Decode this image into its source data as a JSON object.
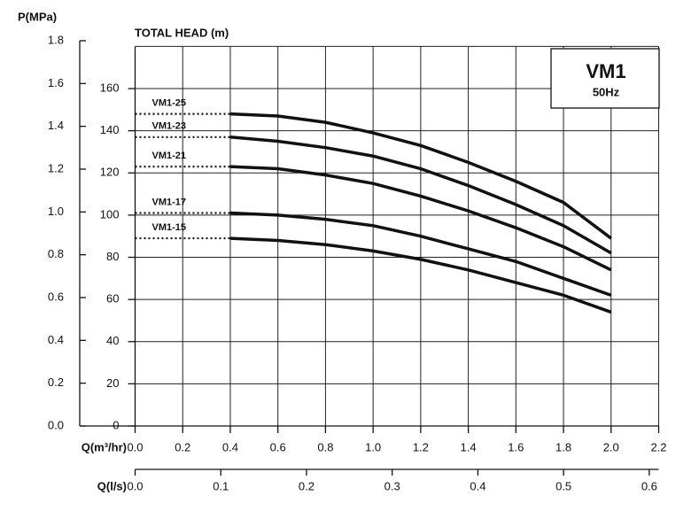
{
  "chart_data": {
    "type": "line",
    "title": "TOTAL HEAD (m)",
    "box_title": "VM1",
    "box_subtitle": "50Hz",
    "xlabel": "Q(m³/hr)",
    "x2label": "Q(l/s)",
    "y2label": "P(MPa)",
    "x": [
      0,
      0.4,
      0.6,
      0.8,
      1.0,
      1.2,
      1.4,
      1.6,
      1.8,
      2.0
    ],
    "series": [
      {
        "name": "VM1-25",
        "color": "#111111",
        "values": [
          148,
          148,
          147,
          144,
          139,
          133,
          125,
          116,
          106,
          89
        ]
      },
      {
        "name": "VM1-23",
        "color": "#111111",
        "values": [
          137,
          137,
          135,
          132,
          128,
          122,
          114,
          105,
          95,
          82
        ]
      },
      {
        "name": "VM1-21",
        "color": "#111111",
        "values": [
          123,
          123,
          122,
          119,
          115,
          109,
          102,
          94,
          85,
          74
        ]
      },
      {
        "name": "VM1-17",
        "color": "#111111",
        "values": [
          101,
          101,
          100,
          98,
          95,
          90,
          84,
          78,
          70,
          62
        ]
      },
      {
        "name": "VM1-15",
        "color": "#111111",
        "values": [
          89,
          89,
          88,
          86,
          83,
          79,
          74,
          68,
          62,
          54
        ]
      }
    ],
    "xlim": [
      0,
      2.2
    ],
    "xticks": [
      {
        "value": 0,
        "label": "0.0"
      },
      0.2,
      0.4,
      0.6,
      0.8,
      {
        "value": 1,
        "label": "1.0"
      },
      1.2,
      1.4,
      1.6,
      1.8,
      {
        "value": 2,
        "label": "2.0"
      },
      2.2
    ],
    "x2lim": [
      0,
      0.611
    ],
    "x2ticks": [
      {
        "value": 0,
        "label": "0.0"
      },
      0.1,
      0.2,
      0.3,
      0.4,
      0.5,
      0.6
    ],
    "ylim": [
      0,
      180
    ],
    "yticks": [
      0,
      20,
      40,
      60,
      80,
      100,
      120,
      140,
      160
    ],
    "y2lim": [
      0,
      1.8
    ],
    "y2ticks": [
      {
        "value": 0,
        "label": "0.0"
      },
      0.2,
      0.4,
      0.6,
      0.8,
      {
        "value": 1,
        "label": "1.0"
      },
      1.2,
      1.4,
      1.6,
      1.8
    ],
    "grid": true
  }
}
